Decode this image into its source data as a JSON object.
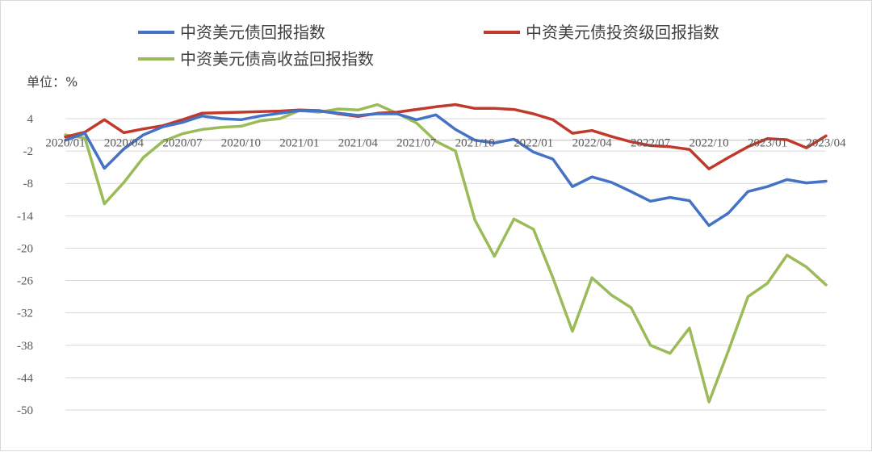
{
  "chart_data": {
    "type": "line",
    "title": "",
    "xlabel": "",
    "ylabel": "",
    "unit_label": "单位：%",
    "ylim": [
      -50,
      4
    ],
    "yticks": [
      4,
      -2,
      -8,
      -14,
      -20,
      -26,
      -32,
      -38,
      -44,
      -50
    ],
    "x_tick_labels": [
      "2020/01",
      "2020/04",
      "2020/07",
      "2020/10",
      "2021/01",
      "2021/04",
      "2021/07",
      "2021/10",
      "2022/01",
      "2022/04",
      "2022/07",
      "2022/10",
      "2023/01",
      "2023/04"
    ],
    "grid": "horizontal",
    "legend_position": "top",
    "series": [
      {
        "name": "中资美元债回报指数",
        "color": "#4472c4",
        "points": [
          [
            "2020/01",
            0
          ],
          [
            "2020/02",
            1.3
          ],
          [
            "2020/03",
            -5.2
          ],
          [
            "2020/04",
            -1.6
          ],
          [
            "2020/05",
            1.0
          ],
          [
            "2020/06",
            2.5
          ],
          [
            "2020/07",
            3.3
          ],
          [
            "2020/08",
            4.5
          ],
          [
            "2020/09",
            4.0
          ],
          [
            "2020/10",
            3.8
          ],
          [
            "2020/11",
            4.5
          ],
          [
            "2020/12",
            5.0
          ],
          [
            "2021/01",
            5.5
          ],
          [
            "2021/02",
            5.4
          ],
          [
            "2021/03",
            5.0
          ],
          [
            "2021/04",
            4.6
          ],
          [
            "2021/05",
            4.9
          ],
          [
            "2021/06",
            4.9
          ],
          [
            "2021/07",
            3.8
          ],
          [
            "2021/08",
            4.7
          ],
          [
            "2021/09",
            2.0
          ],
          [
            "2021/10",
            0
          ],
          [
            "2021/11",
            -0.5
          ],
          [
            "2021/12",
            0.2
          ],
          [
            "2022/01",
            -2.2
          ],
          [
            "2022/02",
            -3.5
          ],
          [
            "2022/03",
            -8.6
          ],
          [
            "2022/04",
            -6.8
          ],
          [
            "2022/05",
            -7.8
          ],
          [
            "2022/06",
            -9.5
          ],
          [
            "2022/07",
            -11.3
          ],
          [
            "2022/08",
            -10.6
          ],
          [
            "2022/09",
            -11.2
          ],
          [
            "2022/10",
            -15.8
          ],
          [
            "2022/11",
            -13.5
          ],
          [
            "2022/12",
            -9.5
          ],
          [
            "2023/01",
            -8.6
          ],
          [
            "2023/02",
            -7.3
          ],
          [
            "2023/03",
            -7.9
          ],
          [
            "2023/04",
            -7.6
          ]
        ]
      },
      {
        "name": "中资美元债投资级回报指数",
        "color": "#c0392b",
        "points": [
          [
            "2020/01",
            0.6
          ],
          [
            "2020/02",
            1.5
          ],
          [
            "2020/03",
            3.8
          ],
          [
            "2020/04",
            1.4
          ],
          [
            "2020/05",
            2.1
          ],
          [
            "2020/06",
            2.7
          ],
          [
            "2020/07",
            3.8
          ],
          [
            "2020/08",
            5.0
          ],
          [
            "2020/09",
            5.1
          ],
          [
            "2020/10",
            5.2
          ],
          [
            "2020/11",
            5.3
          ],
          [
            "2020/12",
            5.4
          ],
          [
            "2021/01",
            5.6
          ],
          [
            "2021/02",
            5.5
          ],
          [
            "2021/03",
            4.9
          ],
          [
            "2021/04",
            4.4
          ],
          [
            "2021/05",
            5.0
          ],
          [
            "2021/06",
            5.2
          ],
          [
            "2021/07",
            5.7
          ],
          [
            "2021/08",
            6.2
          ],
          [
            "2021/09",
            6.6
          ],
          [
            "2021/10",
            5.9
          ],
          [
            "2021/11",
            5.9
          ],
          [
            "2021/12",
            5.7
          ],
          [
            "2022/01",
            4.9
          ],
          [
            "2022/02",
            3.8
          ],
          [
            "2022/03",
            1.3
          ],
          [
            "2022/04",
            1.8
          ],
          [
            "2022/05",
            0.7
          ],
          [
            "2022/06",
            -0.3
          ],
          [
            "2022/07",
            -1.0
          ],
          [
            "2022/08",
            -1.2
          ],
          [
            "2022/09",
            -1.7
          ],
          [
            "2022/10",
            -5.3
          ],
          [
            "2022/11",
            -3.2
          ],
          [
            "2022/12",
            -1.2
          ],
          [
            "2023/01",
            0.3
          ],
          [
            "2023/02",
            0.1
          ],
          [
            "2023/03",
            -1.4
          ],
          [
            "2023/04",
            0.8
          ]
        ]
      },
      {
        "name": "中资美元债高收益回报指数",
        "color": "#9bbb59",
        "points": [
          [
            "2020/01",
            1.0
          ],
          [
            "2020/02",
            0.4
          ],
          [
            "2020/03",
            -11.8
          ],
          [
            "2020/04",
            -7.8
          ],
          [
            "2020/05",
            -3.2
          ],
          [
            "2020/06",
            -0.2
          ],
          [
            "2020/07",
            1.2
          ],
          [
            "2020/08",
            2.0
          ],
          [
            "2020/09",
            2.4
          ],
          [
            "2020/10",
            2.6
          ],
          [
            "2020/11",
            3.6
          ],
          [
            "2020/12",
            4.0
          ],
          [
            "2021/01",
            5.5
          ],
          [
            "2021/02",
            5.2
          ],
          [
            "2021/03",
            5.8
          ],
          [
            "2021/04",
            5.6
          ],
          [
            "2021/05",
            6.6
          ],
          [
            "2021/06",
            5.0
          ],
          [
            "2021/07",
            3.2
          ],
          [
            "2021/08",
            -0.2
          ],
          [
            "2021/09",
            -2.0
          ],
          [
            "2021/10",
            -14.8
          ],
          [
            "2021/11",
            -21.5
          ],
          [
            "2021/12",
            -14.6
          ],
          [
            "2022/01",
            -16.5
          ],
          [
            "2022/02",
            -25.5
          ],
          [
            "2022/03",
            -35.4
          ],
          [
            "2022/04",
            -25.5
          ],
          [
            "2022/05",
            -28.7
          ],
          [
            "2022/06",
            -31.0
          ],
          [
            "2022/07",
            -38.0
          ],
          [
            "2022/08",
            -39.5
          ],
          [
            "2022/09",
            -34.8
          ],
          [
            "2022/10",
            -48.5
          ],
          [
            "2022/11",
            -39.0
          ],
          [
            "2022/12",
            -29.0
          ],
          [
            "2023/01",
            -26.5
          ],
          [
            "2023/02",
            -21.3
          ],
          [
            "2023/03",
            -23.5
          ],
          [
            "2023/04",
            -26.8
          ]
        ]
      }
    ]
  }
}
